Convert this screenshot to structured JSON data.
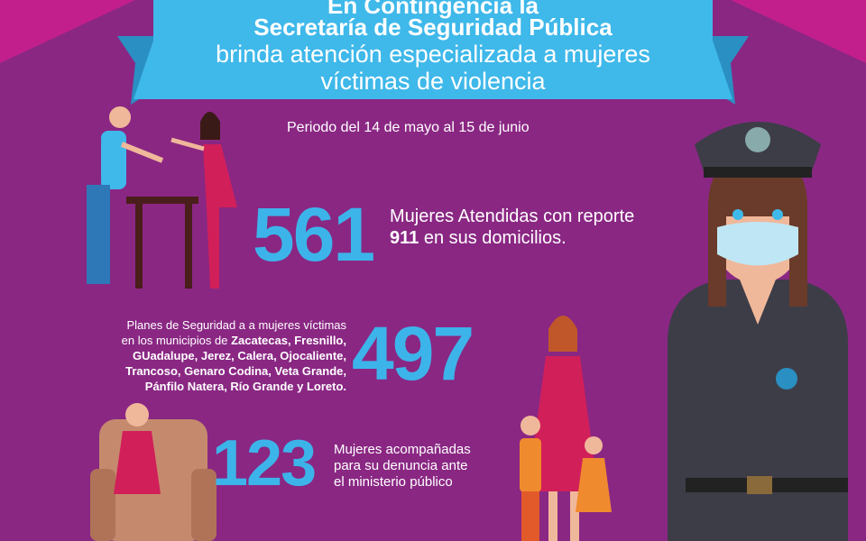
{
  "header": {
    "line1": "En Contingencia la",
    "line2": "Secretaría de Seguridad Pública",
    "line3": "brinda atención especializada a mujeres",
    "line4": "víctimas de violencia"
  },
  "period": "Periodo del 14 de mayo al 15 de junio",
  "stats": [
    {
      "number": "561",
      "lines": [
        "Mujeres Atendidas con reporte"
      ],
      "bold": "911",
      "rest": "en sus domicilios."
    },
    {
      "number": "497",
      "intro": [
        "Planes de Seguridad a a mujeres víctimas",
        "en los municipios de"
      ],
      "municipalities": [
        "Zacatecas, Fresnillo,",
        "GUadalupe, Jerez, Calera, Ojocaliente,",
        "Trancoso, Genaro Codina, Veta Grande,",
        "Pánfilo Natera, Río Grande y Loreto."
      ]
    },
    {
      "number": "123",
      "lines": [
        "Mujeres acompañadas",
        "para su denuncia ante",
        "el ministerio público"
      ]
    }
  ]
}
